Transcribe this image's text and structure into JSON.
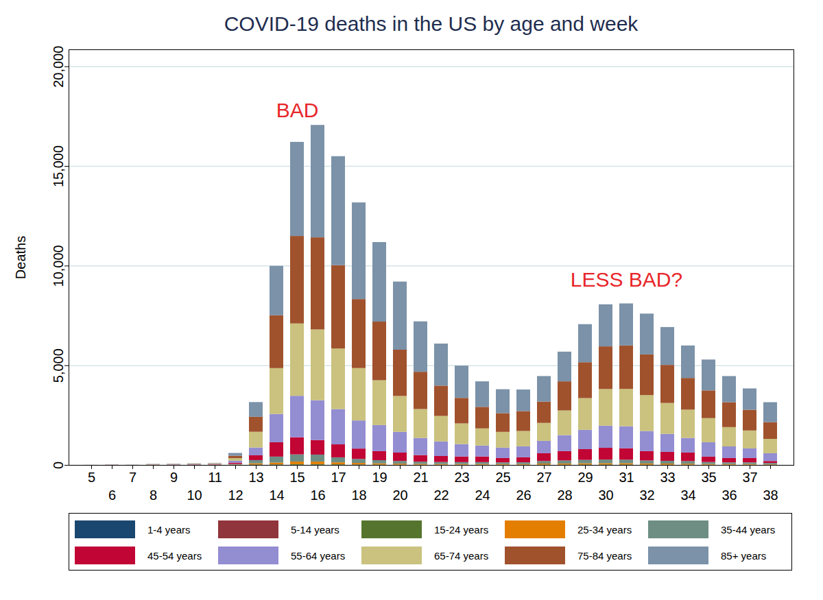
{
  "chart_data": {
    "type": "bar",
    "title": "COVID-19 deaths in the US by age and week",
    "y_label": "Deaths",
    "stacked": true,
    "grid": true,
    "legend": "bottom",
    "categories": [
      5,
      6,
      7,
      8,
      9,
      10,
      11,
      12,
      13,
      14,
      15,
      16,
      17,
      18,
      19,
      20,
      21,
      22,
      23,
      24,
      25,
      26,
      27,
      28,
      29,
      30,
      31,
      32,
      33,
      34,
      35,
      36,
      37,
      38
    ],
    "ylim": [
      0,
      20850
    ],
    "yticks": [
      0,
      {
        "value": 5000,
        "label": "5,000"
      },
      {
        "value": 10000,
        "label": "10,000"
      },
      {
        "value": 15000,
        "label": "15,000"
      },
      {
        "value": 20000,
        "label": "20,000"
      }
    ],
    "annotations": [
      {
        "text": "BAD",
        "x": 15,
        "y": 17800,
        "color": "#e8262a"
      },
      {
        "text": "LESS BAD?",
        "x": 31,
        "y": 9300,
        "color": "#e8262a"
      }
    ],
    "series": [
      {
        "name": "1-4 years",
        "color": "#1a476f",
        "values": [
          0,
          0,
          0,
          0,
          0,
          0,
          0,
          0,
          1,
          3,
          3,
          3,
          2,
          2,
          2,
          1,
          1,
          1,
          1,
          1,
          1,
          1,
          1,
          1,
          1,
          1,
          1,
          1,
          1,
          1,
          1,
          1,
          1,
          1
        ]
      },
      {
        "name": "5-14 years",
        "color": "#90353b",
        "values": [
          0,
          0,
          0,
          0,
          0,
          0,
          0,
          0,
          2,
          5,
          5,
          5,
          4,
          3,
          3,
          2,
          2,
          2,
          2,
          2,
          2,
          2,
          2,
          2,
          2,
          2,
          2,
          2,
          2,
          2,
          2,
          2,
          2,
          1
        ]
      },
      {
        "name": "15-24 years",
        "color": "#55752f",
        "values": [
          0,
          0,
          0,
          1,
          1,
          1,
          2,
          5,
          20,
          20,
          30,
          30,
          25,
          20,
          15,
          12,
          10,
          10,
          10,
          10,
          10,
          10,
          15,
          15,
          20,
          20,
          20,
          15,
          15,
          15,
          10,
          10,
          10,
          5
        ]
      },
      {
        "name": "25-34 years",
        "color": "#e37e00",
        "values": [
          0,
          1,
          0,
          2,
          3,
          4,
          5,
          15,
          60,
          90,
          130,
          130,
          100,
          75,
          60,
          50,
          40,
          35,
          35,
          35,
          30,
          30,
          50,
          55,
          60,
          65,
          65,
          55,
          50,
          45,
          35,
          30,
          30,
          20
        ]
      },
      {
        "name": "35-44 years",
        "color": "#6e8e84",
        "values": [
          0,
          1,
          1,
          4,
          5,
          6,
          8,
          30,
          160,
          300,
          360,
          350,
          250,
          200,
          160,
          135,
          110,
          100,
          95,
          95,
          85,
          90,
          130,
          150,
          170,
          180,
          175,
          150,
          140,
          130,
          100,
          85,
          85,
          70
        ]
      },
      {
        "name": "45-54 years",
        "color": "#c10534",
        "values": [
          1,
          3,
          1,
          7,
          8,
          12,
          15,
          60,
          240,
          720,
          860,
          730,
          650,
          520,
          450,
          420,
          330,
          300,
          280,
          280,
          220,
          250,
          390,
          470,
          540,
          590,
          570,
          470,
          450,
          430,
          270,
          220,
          220,
          100
        ]
      },
      {
        "name": "55-64 years",
        "color": "#938dd2",
        "values": [
          1,
          4,
          2,
          10,
          12,
          15,
          20,
          100,
          390,
          1420,
          2080,
          2000,
          1770,
          1410,
          1310,
          1040,
          860,
          730,
          620,
          550,
          520,
          550,
          620,
          800,
          970,
          1110,
          1110,
          1010,
          900,
          730,
          720,
          580,
          480,
          390
        ]
      },
      {
        "name": "65-74 years",
        "color": "#cac27e",
        "values": [
          1,
          4,
          2,
          10,
          12,
          17,
          20,
          130,
          790,
          2300,
          3630,
          3550,
          3040,
          2630,
          2250,
          1800,
          1450,
          1280,
          1040,
          860,
          790,
          770,
          900,
          1240,
          1590,
          1840,
          1870,
          1800,
          1550,
          1420,
          1210,
          970,
          900,
          720
        ]
      },
      {
        "name": "75-84 years",
        "color": "#a0522d",
        "values": [
          1,
          3,
          2,
          8,
          10,
          12,
          15,
          120,
          750,
          2650,
          4390,
          4620,
          4180,
          3460,
          2940,
          2320,
          1870,
          1520,
          1280,
          1080,
          940,
          1000,
          1070,
          1460,
          1800,
          2140,
          2180,
          2040,
          1910,
          1590,
          1390,
          1250,
          1040,
          840
        ]
      },
      {
        "name": "85+ years",
        "color": "#7b92a8",
        "values": [
          1,
          4,
          2,
          8,
          9,
          13,
          15,
          140,
          740,
          2480,
          4720,
          5640,
          5470,
          4850,
          3990,
          3420,
          2530,
          2110,
          1620,
          1280,
          1200,
          1080,
          1280,
          1490,
          1910,
          2110,
          2110,
          2050,
          1900,
          1630,
          1550,
          1310,
          1070,
          1000
        ]
      }
    ]
  }
}
